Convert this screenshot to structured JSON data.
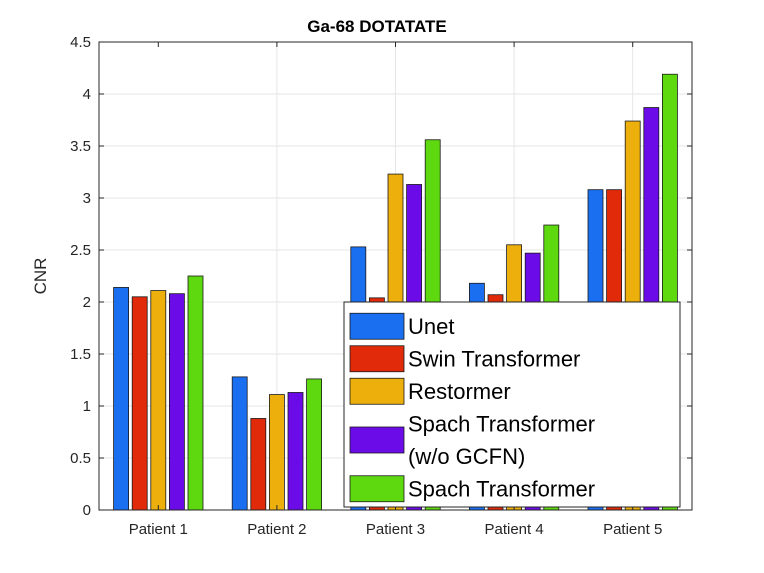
{
  "chart_data": {
    "type": "bar",
    "title": "Ga-68 DOTATATE",
    "xlabel": "",
    "ylabel": "CNR",
    "ylim": [
      0,
      4.5
    ],
    "yticks": [
      "0",
      "0.5",
      "1",
      "1.5",
      "2",
      "2.5",
      "3",
      "3.5",
      "4",
      "4.5"
    ],
    "grid": true,
    "legend_position": "bottom-right",
    "categories": [
      "Patient 1",
      "Patient 2",
      "Patient 3",
      "Patient 4",
      "Patient 5"
    ],
    "series": [
      {
        "name": "Unet",
        "legend_lines": [
          "Unet"
        ],
        "color": "#1a6ff0",
        "values": [
          2.14,
          1.28,
          2.53,
          2.18,
          3.08
        ]
      },
      {
        "name": "Swin Transformer",
        "legend_lines": [
          "Swin Transformer"
        ],
        "color": "#e02a0a",
        "values": [
          2.05,
          0.88,
          2.04,
          2.07,
          3.08
        ]
      },
      {
        "name": "Restormer",
        "legend_lines": [
          "Restormer"
        ],
        "color": "#edaf0b",
        "values": [
          2.11,
          1.11,
          3.23,
          2.55,
          3.74
        ]
      },
      {
        "name": "Spach Transformer (w/o GCFN)",
        "legend_lines": [
          "Spach Transformer",
          "(w/o GCFN)"
        ],
        "color": "#6a0be8",
        "values": [
          2.08,
          1.13,
          3.13,
          2.47,
          3.87
        ]
      },
      {
        "name": "Spach Transformer",
        "legend_lines": [
          "Spach Transformer"
        ],
        "color": "#5ed80f",
        "values": [
          2.25,
          1.26,
          3.56,
          2.74,
          4.19
        ]
      }
    ]
  }
}
